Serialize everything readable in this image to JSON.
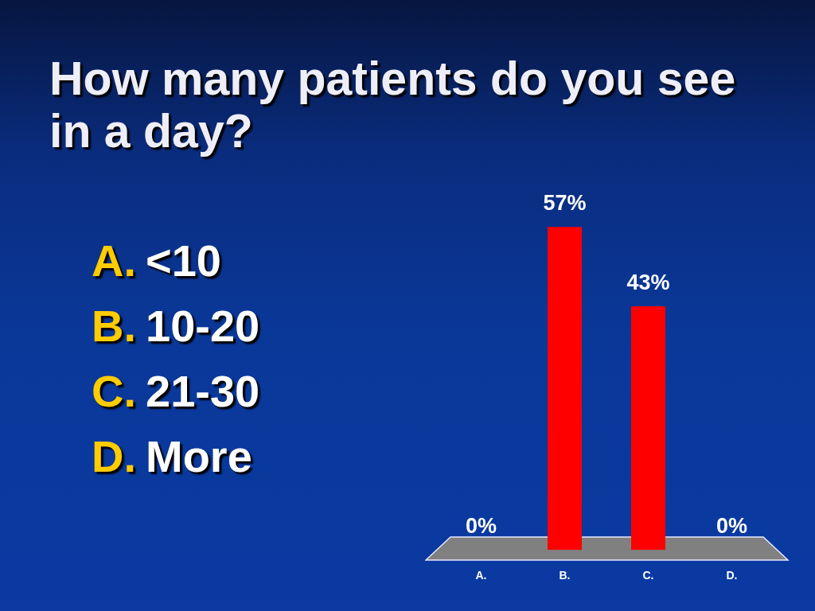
{
  "chart_data": {
    "type": "bar",
    "title": "How many patients do you see in a day?",
    "categories": [
      "A.",
      "B.",
      "C.",
      "D."
    ],
    "values": [
      0,
      57,
      43,
      0
    ],
    "value_labels": [
      "0%",
      "57%",
      "43%",
      "0%"
    ],
    "color": "#ff0000",
    "tick_labels": "x",
    "grid": false,
    "legend": false,
    "annotations": [
      "A. <10",
      "B. 10-20",
      "C. 21-30",
      "D. More"
    ]
  }
}
